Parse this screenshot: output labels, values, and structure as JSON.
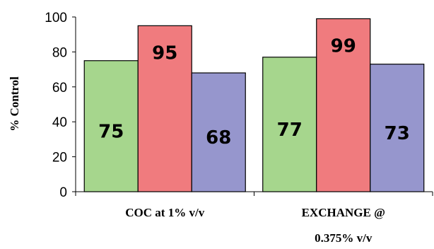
{
  "chart_data": {
    "type": "bar",
    "title": "",
    "xlabel": "",
    "ylabel": "% Control",
    "ylim": [
      0,
      100
    ],
    "yticks": [
      0,
      20,
      40,
      60,
      80,
      100
    ],
    "categories": [
      [
        "COC at 1% v/v"
      ],
      [
        "EXCHANGE @",
        "0.375% v/v"
      ]
    ],
    "series": [
      {
        "color": "#a6d68d",
        "values": [
          75,
          77
        ]
      },
      {
        "color": "#f07b7e",
        "values": [
          95,
          99
        ]
      },
      {
        "color": "#9696cd",
        "values": [
          68,
          73
        ]
      }
    ],
    "grid": false,
    "legend": "none"
  }
}
